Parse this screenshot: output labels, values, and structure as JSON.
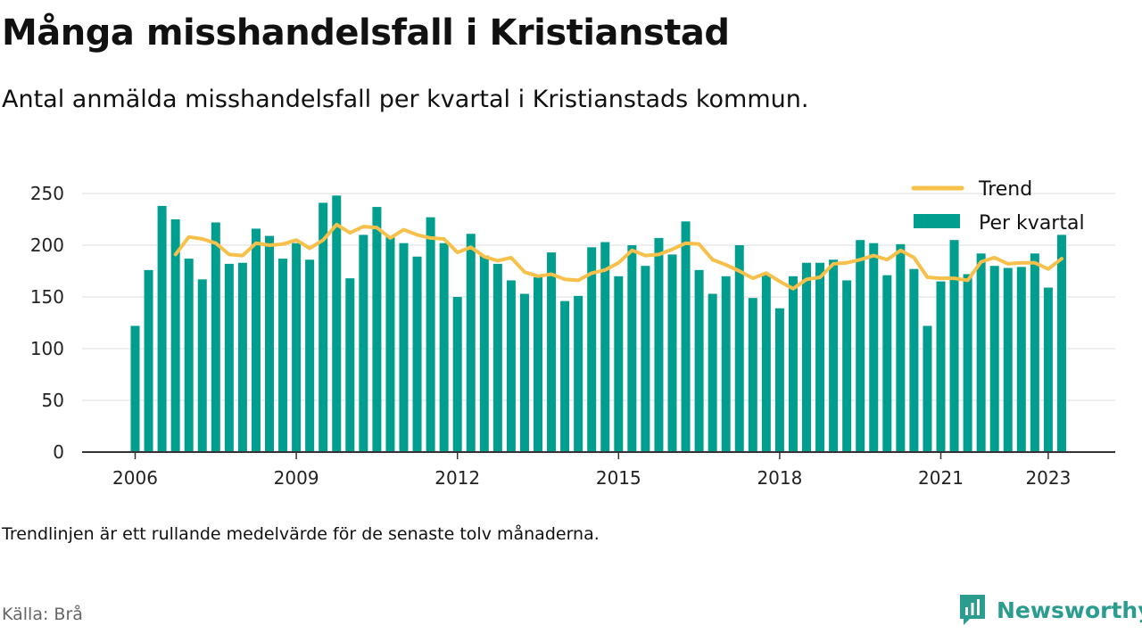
{
  "title": "Många misshandelsfall i Kristianstad",
  "subtitle": "Antal anmälda misshandelsfall per kvartal i Kristianstads kommun.",
  "footnote": "Trendlinjen är ett rullande medelvärde för de senaste tolv månaderna.",
  "source": "Källa: Brå",
  "brand": "Newsworthy",
  "colors": {
    "bars": "#009e8e",
    "trend": "#f7c04a",
    "grid": "#dddddd",
    "axis": "#333333",
    "brand": "#2a9d8f"
  },
  "chart_data": {
    "type": "bar",
    "title": "Många misshandelsfall i Kristianstad",
    "xlabel": "",
    "ylabel": "",
    "ylim": [
      0,
      250
    ],
    "yticks": [
      0,
      50,
      100,
      150,
      200,
      250
    ],
    "xticks": [
      "2006",
      "2009",
      "2012",
      "2015",
      "2018",
      "2021",
      "2023"
    ],
    "grid": true,
    "legend_position": "top-right",
    "legend": [
      "Trend",
      "Per kvartal"
    ],
    "categories": [
      "2006 Q1",
      "2006 Q2",
      "2006 Q3",
      "2006 Q4",
      "2007 Q1",
      "2007 Q2",
      "2007 Q3",
      "2007 Q4",
      "2008 Q1",
      "2008 Q2",
      "2008 Q3",
      "2008 Q4",
      "2009 Q1",
      "2009 Q2",
      "2009 Q3",
      "2009 Q4",
      "2010 Q1",
      "2010 Q2",
      "2010 Q3",
      "2010 Q4",
      "2011 Q1",
      "2011 Q2",
      "2011 Q3",
      "2011 Q4",
      "2012 Q1",
      "2012 Q2",
      "2012 Q3",
      "2012 Q4",
      "2013 Q1",
      "2013 Q2",
      "2013 Q3",
      "2013 Q4",
      "2014 Q1",
      "2014 Q2",
      "2014 Q3",
      "2014 Q4",
      "2015 Q1",
      "2015 Q2",
      "2015 Q3",
      "2015 Q4",
      "2016 Q1",
      "2016 Q2",
      "2016 Q3",
      "2016 Q4",
      "2017 Q1",
      "2017 Q2",
      "2017 Q3",
      "2017 Q4",
      "2018 Q1",
      "2018 Q2",
      "2018 Q3",
      "2018 Q4",
      "2019 Q1",
      "2019 Q2",
      "2019 Q3",
      "2019 Q4",
      "2020 Q1",
      "2020 Q2",
      "2020 Q3",
      "2020 Q4",
      "2021 Q1",
      "2021 Q2",
      "2021 Q3",
      "2021 Q4",
      "2022 Q1",
      "2022 Q2",
      "2022 Q3",
      "2022 Q4",
      "2023 Q1",
      "2023 Q2"
    ],
    "series": [
      {
        "name": "Per kvartal",
        "type": "bar",
        "values": [
          122,
          176,
          238,
          225,
          187,
          167,
          222,
          182,
          183,
          216,
          209,
          187,
          202,
          186,
          241,
          248,
          168,
          210,
          237,
          208,
          202,
          189,
          227,
          202,
          150,
          211,
          190,
          182,
          166,
          153,
          169,
          193,
          146,
          151,
          198,
          203,
          170,
          200,
          180,
          207,
          191,
          223,
          176,
          153,
          170,
          200,
          149,
          172,
          139,
          170,
          183,
          183,
          186,
          166,
          205,
          202,
          171,
          201,
          177,
          122,
          165,
          205,
          172,
          192,
          180,
          178,
          179,
          192,
          159,
          210
        ]
      },
      {
        "name": "Trend",
        "type": "line",
        "values": [
          null,
          null,
          null,
          191,
          208,
          206,
          202,
          191,
          190,
          202,
          200,
          201,
          205,
          197,
          205,
          220,
          212,
          218,
          217,
          207,
          215,
          210,
          207,
          206,
          193,
          198,
          189,
          185,
          188,
          174,
          170,
          172,
          167,
          166,
          173,
          176,
          183,
          195,
          190,
          191,
          196,
          202,
          201,
          186,
          181,
          175,
          168,
          173,
          165,
          158,
          167,
          169,
          182,
          183,
          186,
          190,
          186,
          195,
          188,
          169,
          168,
          168,
          166,
          184,
          188,
          182,
          183,
          183,
          177,
          187
        ]
      }
    ]
  }
}
